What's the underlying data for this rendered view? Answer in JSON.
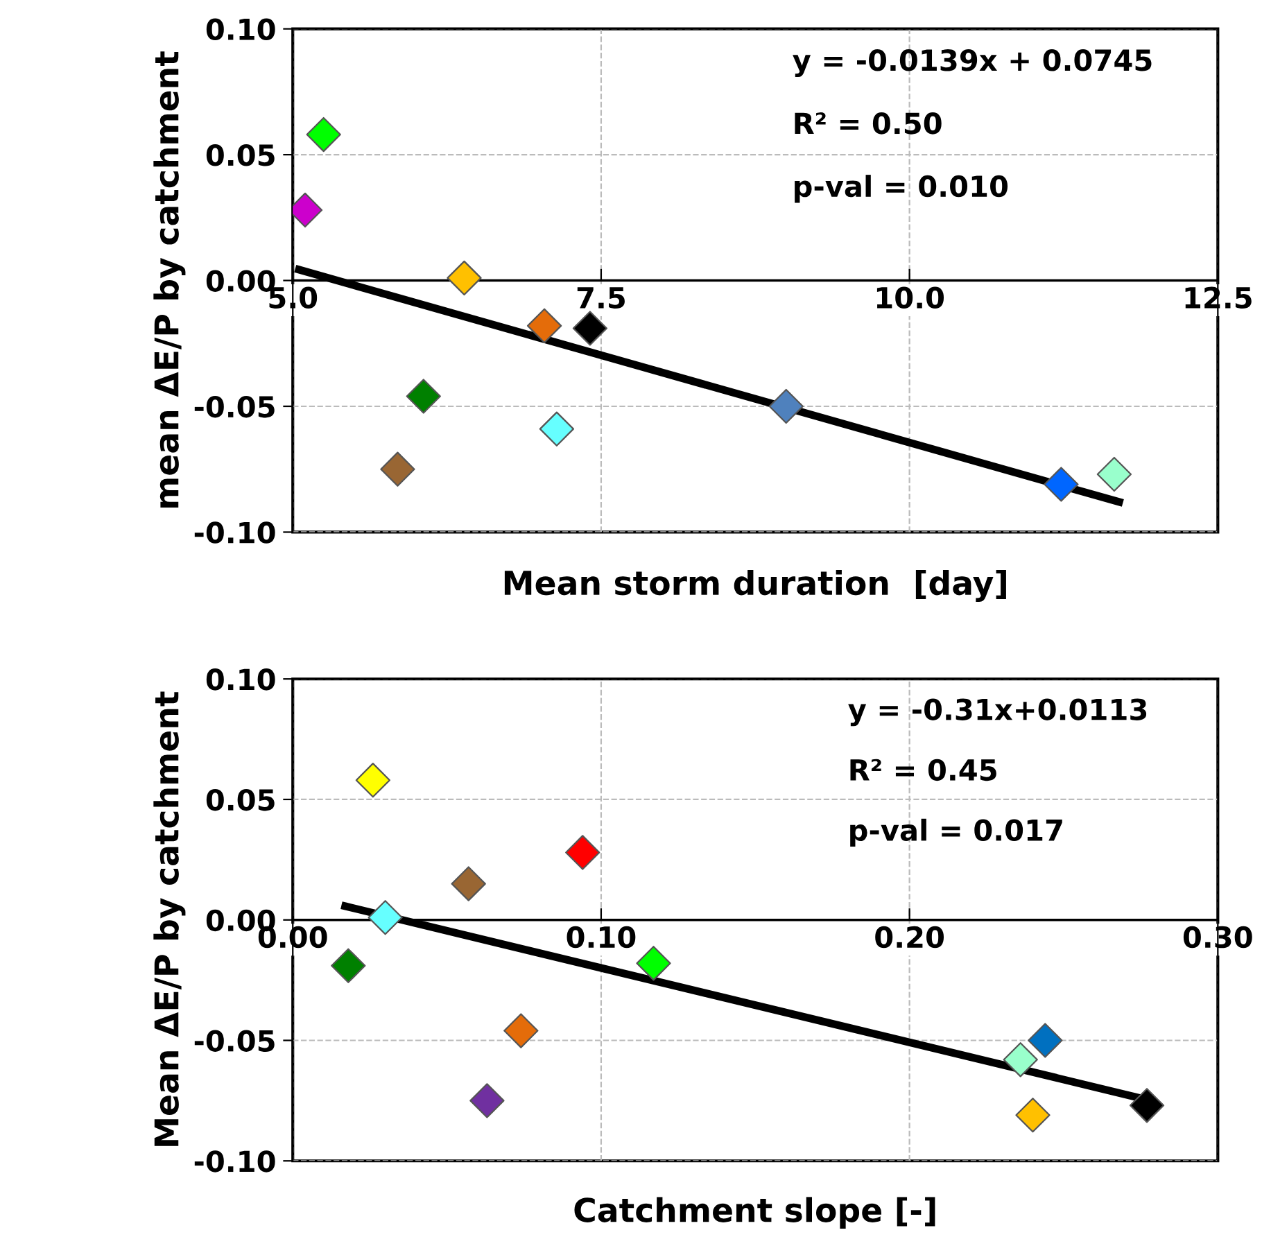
{
  "chart_data": [
    {
      "type": "scatter",
      "xlabel": "Mean storm duration  [day]",
      "ylabel": "mean ΔE/P by catchment",
      "marker": "diamond",
      "grid": true,
      "legend": false,
      "xlim": [
        5.0,
        12.5
      ],
      "ylim": [
        -0.1,
        0.1
      ],
      "xticks": [
        {
          "value": 5.0,
          "label": "5.0"
        },
        {
          "value": 7.5,
          "label": "7.5"
        },
        {
          "value": 10.0,
          "label": "10.0"
        },
        {
          "value": 12.5,
          "label": "12.5"
        }
      ],
      "yticks": [
        {
          "value": -0.1,
          "label": "-0.10"
        },
        {
          "value": -0.05,
          "label": "-0.05"
        },
        {
          "value": 0.0,
          "label": "0.00"
        },
        {
          "value": 0.05,
          "label": "0.05"
        },
        {
          "value": 0.1,
          "label": "0.10"
        }
      ],
      "annotations": [
        "y = -0.0139x + 0.0745",
        "R² = 0.50",
        "p-val = 0.010"
      ],
      "series": [
        {
          "x": [
            5.1,
            5.25,
            6.39,
            7.04,
            7.41,
            6.06,
            5.85,
            7.14,
            9.0,
            11.23,
            11.66
          ],
          "values": [
            0.028,
            0.058,
            0.001,
            -0.018,
            -0.019,
            -0.046,
            -0.075,
            -0.059,
            -0.05,
            -0.081,
            -0.077
          ],
          "colors": [
            "#cc00cc",
            "#00ff00",
            "#ffc000",
            "#e46c0a",
            "#000000",
            "#008000",
            "#996633",
            "#66ffff",
            "#4f81bd",
            "#0066ff",
            "#99ffcc"
          ]
        },
        {
          "type": "line",
          "color": "#000000",
          "marker": "none",
          "x": [
            5.05,
            11.7
          ],
          "values": [
            0.0043,
            -0.088
          ]
        }
      ]
    },
    {
      "type": "scatter",
      "xlabel": "Catchment slope [-]",
      "ylabel": "Mean ΔE/P by catchment",
      "marker": "diamond",
      "grid": true,
      "legend": false,
      "xlim": [
        0.0,
        0.3
      ],
      "ylim": [
        -0.1,
        0.1
      ],
      "xticks": [
        {
          "value": 0.0,
          "label": "0.00"
        },
        {
          "value": 0.1,
          "label": "0.10"
        },
        {
          "value": 0.2,
          "label": "0.20"
        },
        {
          "value": 0.3,
          "label": "0.30"
        }
      ],
      "yticks": [
        {
          "value": -0.1,
          "label": "-0.10"
        },
        {
          "value": -0.05,
          "label": "-0.05"
        },
        {
          "value": 0.0,
          "label": "0.00"
        },
        {
          "value": 0.05,
          "label": "0.05"
        },
        {
          "value": 0.1,
          "label": "0.10"
        }
      ],
      "annotations": [
        "y = -0.31x+0.0113",
        "R² = 0.45",
        "p-val = 0.017"
      ],
      "series": [
        {
          "x": [
            0.026,
            0.094,
            0.057,
            0.03,
            0.018,
            0.117,
            0.074,
            0.063,
            0.236,
            0.244,
            0.24,
            0.277
          ],
          "values": [
            0.058,
            0.028,
            0.015,
            0.001,
            -0.019,
            -0.018,
            -0.046,
            -0.075,
            -0.058,
            -0.05,
            -0.081,
            -0.077
          ],
          "colors": [
            "#ffff00",
            "#ff0000",
            "#996633",
            "#66ffff",
            "#008000",
            "#00ff00",
            "#e46c0a",
            "#7030a0",
            "#99ffcc",
            "#0070c0",
            "#ffc000",
            "#000000"
          ]
        },
        {
          "type": "line",
          "color": "#000000",
          "marker": "none",
          "x": [
            0.017,
            0.277
          ],
          "values": [
            0.0057,
            -0.0746
          ]
        }
      ]
    }
  ]
}
